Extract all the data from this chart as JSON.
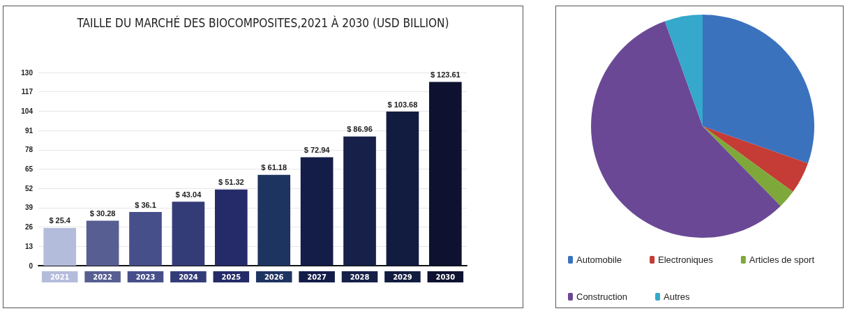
{
  "chart_data": [
    {
      "type": "bar",
      "title": "TAILLE DU MARCHÉ DES BIOCOMPOSITES,2021 À 2030 (USD BILLION)",
      "categories": [
        "2021",
        "2022",
        "2023",
        "2024",
        "2025",
        "2026",
        "2027",
        "2028",
        "2029",
        "2030"
      ],
      "values": [
        25.4,
        30.28,
        36.1,
        43.04,
        51.32,
        61.18,
        72.94,
        86.96,
        103.68,
        123.61
      ],
      "value_labels": [
        "$ 25.4",
        "$ 30.28",
        "$ 36.1",
        "$ 43.04",
        "$ 51.32",
        "$ 61.18",
        "$ 72.94",
        "$ 86.96",
        "$ 103.68",
        "$ 123.61"
      ],
      "colors": [
        "#b4bcdc",
        "#575f92",
        "#474f8a",
        "#343c78",
        "#252b68",
        "#1e3460",
        "#141c48",
        "#162048",
        "#121c40",
        "#0e1230"
      ],
      "ylim": [
        0,
        130
      ],
      "yticks": [
        0,
        13,
        26,
        39,
        52,
        65,
        78,
        91,
        104,
        117,
        130
      ],
      "grid": "y",
      "legend": false
    },
    {
      "type": "pie",
      "categories": [
        "Automobile",
        "Electroniques",
        "Articles de sport",
        "Construction",
        "Autres"
      ],
      "values": [
        30.4,
        4.6,
        2.7,
        56.8,
        5.5
      ],
      "colors": [
        "#3b72be",
        "#c43c35",
        "#7ea83a",
        "#6b4896",
        "#35a8cc"
      ],
      "legend": "bottom"
    }
  ]
}
